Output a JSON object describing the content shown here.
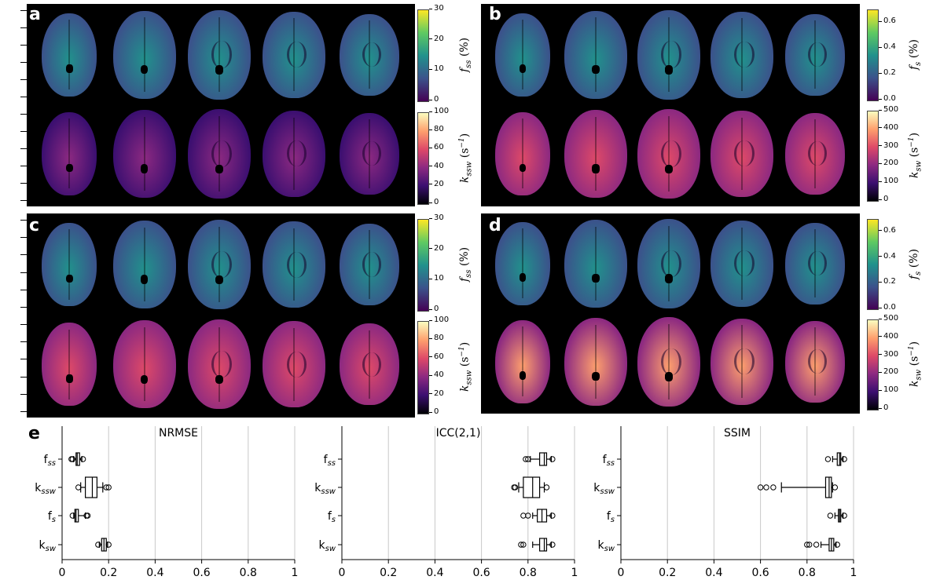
{
  "panels": [
    {
      "label": "a",
      "top_cbar": {
        "label": "f_ss (%)",
        "ticks": [
          "30",
          "20",
          "10",
          "0"
        ]
      },
      "bottom_cbar": {
        "label": "k_ssw (s^-1)",
        "ticks": [
          "100",
          "80",
          "60",
          "40",
          "20",
          "0"
        ]
      }
    },
    {
      "label": "b",
      "top_cbar": {
        "label": "f_s (%)",
        "ticks": [
          "0.6",
          "0.4",
          "0.2",
          "0.0"
        ]
      },
      "bottom_cbar": {
        "label": "k_sw (s^-1)",
        "ticks": [
          "500",
          "400",
          "300",
          "200",
          "100",
          "0"
        ]
      }
    },
    {
      "label": "c",
      "top_cbar": {
        "label": "f_ss (%)",
        "ticks": [
          "30",
          "20",
          "10",
          "0"
        ]
      },
      "bottom_cbar": {
        "label": "k_ssw (s^-1)",
        "ticks": [
          "100",
          "80",
          "60",
          "40",
          "20",
          "0"
        ]
      }
    },
    {
      "label": "d",
      "top_cbar": {
        "label": "f_s (%)",
        "ticks": [
          "0.6",
          "0.4",
          "0.2",
          "0.0"
        ]
      },
      "bottom_cbar": {
        "label": "k_sw (s^-1)",
        "ticks": [
          "500",
          "400",
          "300",
          "200",
          "100",
          "0"
        ]
      }
    }
  ],
  "cbar_text": {
    "fss": "f",
    "fss_sub": "ss",
    "fss_unit": " (%)",
    "fs": "f",
    "fs_sub": "s",
    "fs_unit": " (%)",
    "kssw": "k",
    "kssw_sub": "ssw",
    "kssw_unit": " (s",
    "kssw_sup": "−1",
    "kssw_close": ")",
    "ksw": "k",
    "ksw_sub": "sw",
    "ksw_unit": " (s",
    "ksw_sup": "−1",
    "ksw_close": ")"
  },
  "panel_e": {
    "label": "e",
    "chart_data": [
      {
        "type": "boxplot",
        "title": "NRMSE",
        "categories": [
          "f_ss",
          "k_ssw",
          "f_s",
          "k_sw"
        ],
        "xlim": [
          0,
          1
        ],
        "xticks": [
          "0",
          "0.2",
          "0.4",
          "0.6",
          "0.8",
          "1"
        ],
        "grid": true,
        "boxes": [
          {
            "name": "f_ss",
            "whislo": 0.05,
            "q1": 0.06,
            "med": 0.065,
            "q3": 0.075,
            "whishi": 0.085,
            "fliers": [
              0.04,
              0.045,
              0.09
            ]
          },
          {
            "name": "k_ssw",
            "whislo": 0.08,
            "q1": 0.1,
            "med": 0.13,
            "q3": 0.15,
            "whishi": 0.175,
            "fliers": [
              0.07,
              0.19,
              0.2
            ]
          },
          {
            "name": "f_s",
            "whislo": 0.05,
            "q1": 0.055,
            "med": 0.06,
            "q3": 0.07,
            "whishi": 0.1,
            "fliers": [
              0.045,
              0.105,
              0.11
            ]
          },
          {
            "name": "k_sw",
            "whislo": 0.16,
            "q1": 0.17,
            "med": 0.18,
            "q3": 0.19,
            "whishi": 0.195,
            "fliers": [
              0.155,
              0.2
            ]
          }
        ]
      },
      {
        "type": "boxplot",
        "title": "ICC(2,1)",
        "categories": [
          "f_ss",
          "k_ssw",
          "f_s",
          "k_sw"
        ],
        "xlim": [
          0,
          1
        ],
        "xticks": [
          "0",
          "0.2",
          "0.4",
          "0.6",
          "0.8",
          "1"
        ],
        "grid": true,
        "boxes": [
          {
            "name": "f_ss",
            "whislo": 0.81,
            "q1": 0.85,
            "med": 0.87,
            "q3": 0.88,
            "whishi": 0.9,
            "fliers": [
              0.79,
              0.8,
              0.905
            ]
          },
          {
            "name": "k_ssw",
            "whislo": 0.76,
            "q1": 0.78,
            "med": 0.82,
            "q3": 0.85,
            "whishi": 0.87,
            "fliers": [
              0.74,
              0.745,
              0.88
            ]
          },
          {
            "name": "f_s",
            "whislo": 0.82,
            "q1": 0.84,
            "med": 0.86,
            "q3": 0.88,
            "whishi": 0.9,
            "fliers": [
              0.78,
              0.8,
              0.905
            ]
          },
          {
            "name": "k_sw",
            "whislo": 0.82,
            "q1": 0.85,
            "med": 0.87,
            "q3": 0.88,
            "whishi": 0.9,
            "fliers": [
              0.77,
              0.78,
              0.905
            ]
          }
        ]
      },
      {
        "type": "boxplot",
        "title": "SSIM",
        "categories": [
          "f_ss",
          "k_ssw",
          "f_s",
          "k_sw"
        ],
        "xlim": [
          0,
          1
        ],
        "xticks": [
          "0",
          "0.2",
          "0.4",
          "0.6",
          "0.8",
          "1"
        ],
        "grid": true,
        "boxes": [
          {
            "name": "f_ss",
            "whislo": 0.91,
            "q1": 0.93,
            "med": 0.94,
            "q3": 0.945,
            "whishi": 0.955,
            "fliers": [
              0.89,
              0.96
            ]
          },
          {
            "name": "k_ssw",
            "whislo": 0.69,
            "q1": 0.88,
            "med": 0.895,
            "q3": 0.905,
            "whishi": 0.91,
            "fliers": [
              0.6,
              0.625,
              0.655,
              0.92
            ]
          },
          {
            "name": "f_s",
            "whislo": 0.92,
            "q1": 0.935,
            "med": 0.94,
            "q3": 0.945,
            "whishi": 0.955,
            "fliers": [
              0.9,
              0.96
            ]
          },
          {
            "name": "k_sw",
            "whislo": 0.86,
            "q1": 0.895,
            "med": 0.905,
            "q3": 0.915,
            "whishi": 0.925,
            "fliers": [
              0.8,
              0.81,
              0.84,
              0.93
            ]
          }
        ]
      }
    ]
  },
  "row_labels": {
    "fss_base": "f",
    "fss_sub": "SS",
    "kssw_base": "k",
    "kssw_sub": "SSW",
    "fs_base": "f",
    "fs_sub": "S",
    "ksw_base": "k",
    "ksw_sub": "SW"
  },
  "colors": {
    "viridis": [
      "#440154",
      "#3b528b",
      "#21918c",
      "#5ec962",
      "#fde725"
    ],
    "magma": [
      "#000004",
      "#3b0f70",
      "#8c2981",
      "#de4968",
      "#fe9f6d",
      "#fcfdbf"
    ]
  }
}
